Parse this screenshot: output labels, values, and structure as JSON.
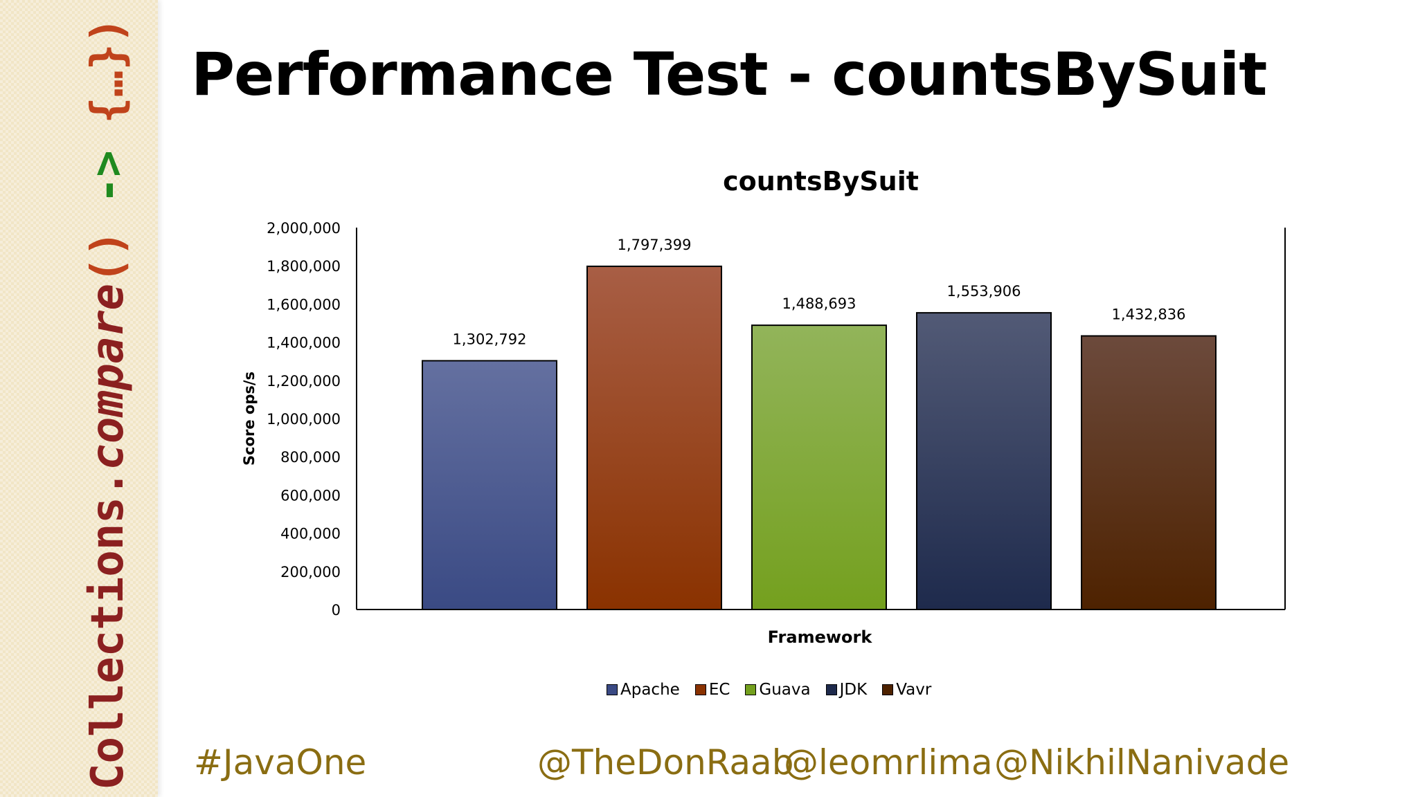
{
  "slide": {
    "title": "Performance Test - countsBySuit",
    "side_code": {
      "part1": "Collections.",
      "part2": "compare",
      "part3": "()",
      "part4": " -> ",
      "part5": "{…}",
      "part6": ")"
    },
    "footer": {
      "hashtag": "#JavaOne",
      "handle1": "@TheDonRaab",
      "handle2": "@leomrlima",
      "handle3": "@NikhilNanivade"
    }
  },
  "colors": {
    "Apache": [
      "#6470a0",
      "#3a4a84"
    ],
    "EC": [
      "#a85e45",
      "#8a3200"
    ],
    "Guava": [
      "#92b45a",
      "#74a01e"
    ],
    "JDK": [
      "#525a76",
      "#1e2a4c"
    ],
    "Vavr": [
      "#6c4a3c",
      "#4e2200"
    ]
  },
  "chart_data": {
    "type": "bar",
    "title": "countsBySuit",
    "xlabel": "Framework",
    "ylabel": "Score ops/s",
    "categories": [
      "Apache",
      "EC",
      "Guava",
      "JDK",
      "Vavr"
    ],
    "values": [
      1302792,
      1797399,
      1488693,
      1553906,
      1432836
    ],
    "data_labels": [
      "1,302,792",
      "1,797,399",
      "1,488,693",
      "1,553,906",
      "1,432,836"
    ],
    "ylim": [
      0,
      2000000
    ],
    "yticks": [
      0,
      200000,
      400000,
      600000,
      800000,
      1000000,
      1200000,
      1400000,
      1600000,
      1800000,
      2000000
    ],
    "ytick_labels": [
      "0",
      "200,000",
      "400,000",
      "600,000",
      "800,000",
      "1,000,000",
      "1,200,000",
      "1,400,000",
      "1,600,000",
      "1,800,000",
      "2,000,000"
    ],
    "grid": false,
    "legend": [
      "Apache",
      "EC",
      "Guava",
      "JDK",
      "Vavr"
    ],
    "legend_position": "bottom"
  }
}
